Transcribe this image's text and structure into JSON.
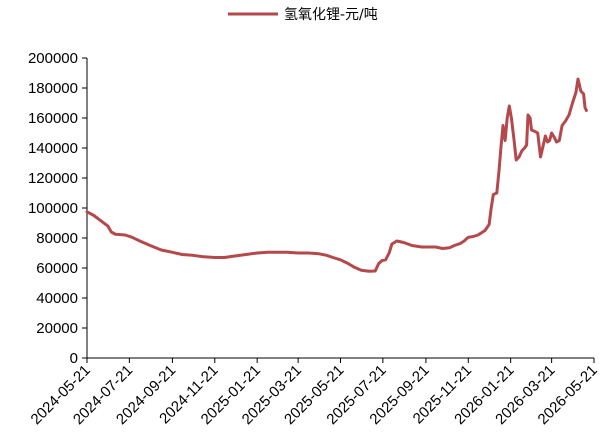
{
  "chart_data": {
    "type": "line",
    "legend": {
      "position": "top-center",
      "entries": [
        "氢氧化锂-元/吨"
      ]
    },
    "series": [
      {
        "name": "氢氧化锂-元/吨",
        "color": "#b5484a",
        "points": [
          [
            "2024-05-21",
            97500
          ],
          [
            "2024-05-31",
            95000
          ],
          [
            "2024-06-10",
            91500
          ],
          [
            "2024-06-20",
            88000
          ],
          [
            "2024-06-25",
            84000
          ],
          [
            "2024-07-01",
            82500
          ],
          [
            "2024-07-15",
            82000
          ],
          [
            "2024-07-25",
            80500
          ],
          [
            "2024-08-05",
            78000
          ],
          [
            "2024-08-20",
            75000
          ],
          [
            "2024-09-05",
            72000
          ],
          [
            "2024-09-21",
            70500
          ],
          [
            "2024-10-05",
            69000
          ],
          [
            "2024-10-20",
            68500
          ],
          [
            "2024-11-05",
            67500
          ],
          [
            "2024-11-21",
            67000
          ],
          [
            "2024-12-05",
            67000
          ],
          [
            "2024-12-20",
            68000
          ],
          [
            "2025-01-05",
            69000
          ],
          [
            "2025-01-21",
            70000
          ],
          [
            "2025-02-05",
            70500
          ],
          [
            "2025-02-20",
            70500
          ],
          [
            "2025-03-05",
            70500
          ],
          [
            "2025-03-21",
            70000
          ],
          [
            "2025-04-05",
            70000
          ],
          [
            "2025-04-20",
            69500
          ],
          [
            "2025-05-01",
            68500
          ],
          [
            "2025-05-10",
            67000
          ],
          [
            "2025-05-21",
            65500
          ],
          [
            "2025-06-01",
            63000
          ],
          [
            "2025-06-10",
            60500
          ],
          [
            "2025-06-20",
            58500
          ],
          [
            "2025-07-01",
            57800
          ],
          [
            "2025-07-10",
            58000
          ],
          [
            "2025-07-15",
            63000
          ],
          [
            "2025-07-20",
            65000
          ],
          [
            "2025-07-25",
            65500
          ],
          [
            "2025-07-30",
            70000
          ],
          [
            "2025-08-03",
            76000
          ],
          [
            "2025-08-10",
            78000
          ],
          [
            "2025-08-20",
            77000
          ],
          [
            "2025-09-01",
            75000
          ],
          [
            "2025-09-15",
            74000
          ],
          [
            "2025-09-21",
            74000
          ],
          [
            "2025-10-05",
            74000
          ],
          [
            "2025-10-15",
            73000
          ],
          [
            "2025-10-25",
            73500
          ],
          [
            "2025-11-01",
            75000
          ],
          [
            "2025-11-10",
            76500
          ],
          [
            "2025-11-15",
            78000
          ],
          [
            "2025-11-21",
            80500
          ],
          [
            "2025-11-28",
            81000
          ],
          [
            "2025-12-05",
            82000
          ],
          [
            "2025-12-15",
            85000
          ],
          [
            "2025-12-21",
            89000
          ],
          [
            "2025-12-24",
            100000
          ],
          [
            "2025-12-27",
            109000
          ],
          [
            "2026-01-01",
            110000
          ],
          [
            "2026-01-04",
            124000
          ],
          [
            "2026-01-07",
            140000
          ],
          [
            "2026-01-10",
            155000
          ],
          [
            "2026-01-13",
            145000
          ],
          [
            "2026-01-16",
            160000
          ],
          [
            "2026-01-19",
            168000
          ],
          [
            "2026-01-22",
            160000
          ],
          [
            "2026-01-26",
            145000
          ],
          [
            "2026-01-29",
            132000
          ],
          [
            "2026-02-02",
            134000
          ],
          [
            "2026-02-06",
            138000
          ],
          [
            "2026-02-10",
            140000
          ],
          [
            "2026-02-13",
            142000
          ],
          [
            "2026-02-15",
            162000
          ],
          [
            "2026-02-18",
            160000
          ],
          [
            "2026-02-20",
            152000
          ],
          [
            "2026-02-25",
            151000
          ],
          [
            "2026-03-01",
            150000
          ],
          [
            "2026-03-05",
            134000
          ],
          [
            "2026-03-08",
            140000
          ],
          [
            "2026-03-12",
            148000
          ],
          [
            "2026-03-15",
            144000
          ],
          [
            "2026-03-18",
            145000
          ],
          [
            "2026-03-21",
            150000
          ],
          [
            "2026-03-25",
            147000
          ],
          [
            "2026-03-28",
            144000
          ],
          [
            "2026-04-01",
            145000
          ],
          [
            "2026-04-05",
            155000
          ],
          [
            "2026-04-10",
            158000
          ],
          [
            "2026-04-15",
            162000
          ],
          [
            "2026-04-20",
            170000
          ],
          [
            "2026-04-25",
            177000
          ],
          [
            "2026-04-28",
            186000
          ],
          [
            "2026-05-02",
            178000
          ],
          [
            "2026-05-06",
            176000
          ],
          [
            "2026-05-08",
            167000
          ],
          [
            "2026-05-10",
            165000
          ]
        ]
      }
    ],
    "x_axis": {
      "type": "date",
      "range": [
        "2024-05-21",
        "2026-05-21"
      ],
      "ticks": [
        "2024-05-21",
        "2024-07-21",
        "2024-09-21",
        "2024-11-21",
        "2025-01-21",
        "2025-03-21",
        "2025-05-21",
        "2025-07-21",
        "2025-09-21",
        "2025-11-21",
        "2026-01-21",
        "2026-03-21",
        "2026-05-21"
      ]
    },
    "y_axis": {
      "range": [
        0,
        200000
      ],
      "ticks": [
        "0",
        "20000",
        "40000",
        "60000",
        "80000",
        "100000",
        "120000",
        "140000",
        "160000",
        "180000",
        "200000"
      ]
    },
    "grid": false
  }
}
